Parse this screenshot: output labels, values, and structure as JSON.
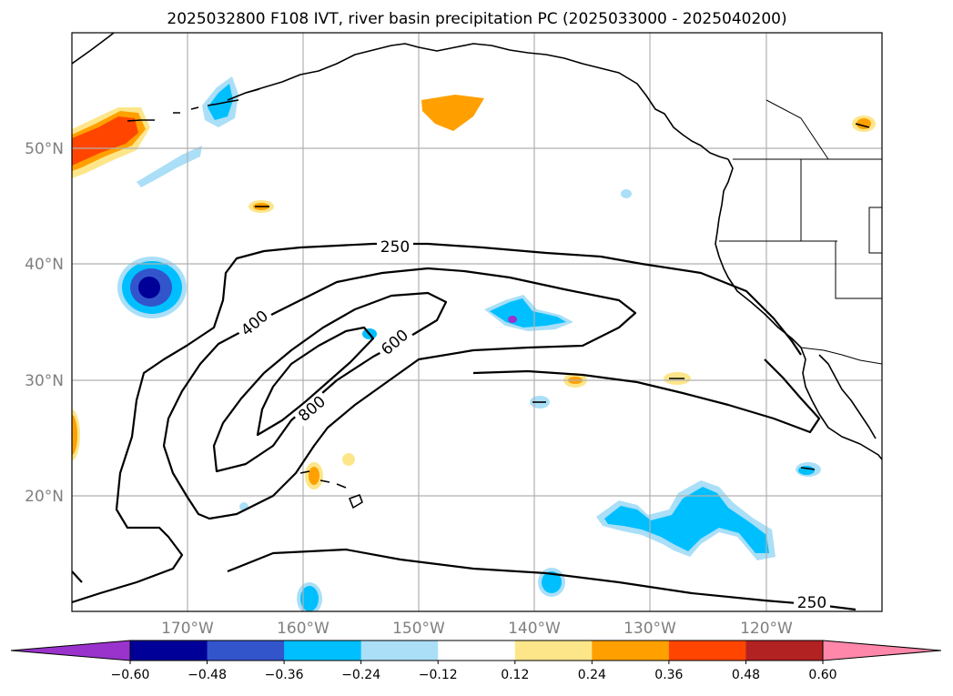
{
  "title": "2025032800 F108 IVT, river basin precipitation PC (2025033000 - 2025040200)",
  "map": {
    "lon_range": [
      -180,
      -110
    ],
    "lat_range": [
      10,
      60
    ],
    "lat_labels": [
      "50°N",
      "40°N",
      "30°N",
      "20°N"
    ],
    "lon_labels": [
      "170°W",
      "160°W",
      "150°W",
      "140°W",
      "130°W",
      "120°W"
    ],
    "gridlines": true,
    "ivt_contour_labels": [
      "250",
      "400",
      "600",
      "800",
      "250"
    ],
    "ivt_contour_levels": [
      250,
      400,
      600,
      800
    ]
  },
  "colorbar": {
    "tick_labels": [
      "−0.60",
      "−0.48",
      "−0.36",
      "−0.24",
      "−0.12",
      "0.12",
      "0.24",
      "0.36",
      "0.48",
      "0.60"
    ],
    "colors": [
      "#9933cc",
      "#000099",
      "#3355cc",
      "#00bfff",
      "#aadff7",
      "#ffffff",
      "#fde68a",
      "#ffa000",
      "#ff4500",
      "#b22222",
      "#ff88aa"
    ],
    "extend": "both"
  }
}
